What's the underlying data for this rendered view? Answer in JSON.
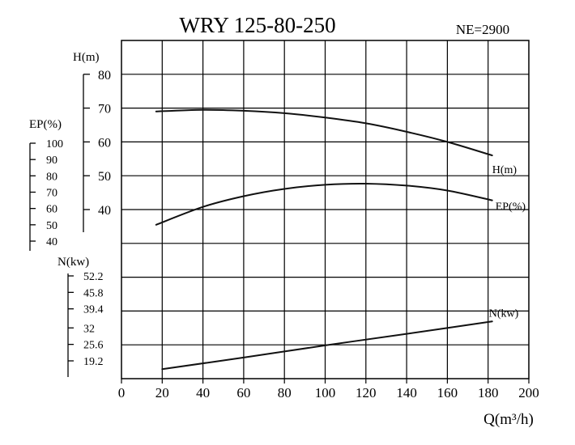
{
  "chart_data": {
    "type": "line",
    "title": "WRY 125-80-250",
    "subtitle": "NE=2900",
    "xlabel": "Q(m³/h)",
    "xlim": [
      0,
      200
    ],
    "x_ticks": [
      "0",
      "20",
      "40",
      "60",
      "80",
      "100",
      "120",
      "140",
      "160",
      "180",
      "200"
    ],
    "grid": true,
    "axes": [
      {
        "id": "H",
        "label": "H(m)",
        "ticks": [
          "80",
          "70",
          "60",
          "50",
          "40"
        ]
      },
      {
        "id": "EP",
        "label": "EP(%)",
        "ticks": [
          "100",
          "90",
          "80",
          "70",
          "60",
          "50",
          "40"
        ]
      },
      {
        "id": "N",
        "label": "N(kw)",
        "ticks": [
          "52.2",
          "45.8",
          "39.4",
          "32",
          "25.6",
          "19.2"
        ]
      }
    ],
    "series": [
      {
        "name": "H(m)",
        "axis": "H",
        "x": [
          17,
          40,
          60,
          80,
          100,
          120,
          140,
          160,
          182
        ],
        "y": [
          69,
          69.5,
          69.2,
          68.5,
          67.2,
          65.5,
          63,
          60,
          56
        ]
      },
      {
        "name": "EP(%)",
        "axis": "EP",
        "x": [
          17,
          40,
          60,
          80,
          100,
          120,
          140,
          160,
          182
        ],
        "y": [
          50,
          61,
          67.5,
          72,
          74.5,
          75.2,
          74,
          71,
          65
        ]
      },
      {
        "name": "N(kw)",
        "axis": "N",
        "x": [
          20,
          60,
          100,
          140,
          182
        ],
        "y": [
          16,
          20.5,
          25.2,
          29.7,
          34.5
        ]
      }
    ]
  }
}
